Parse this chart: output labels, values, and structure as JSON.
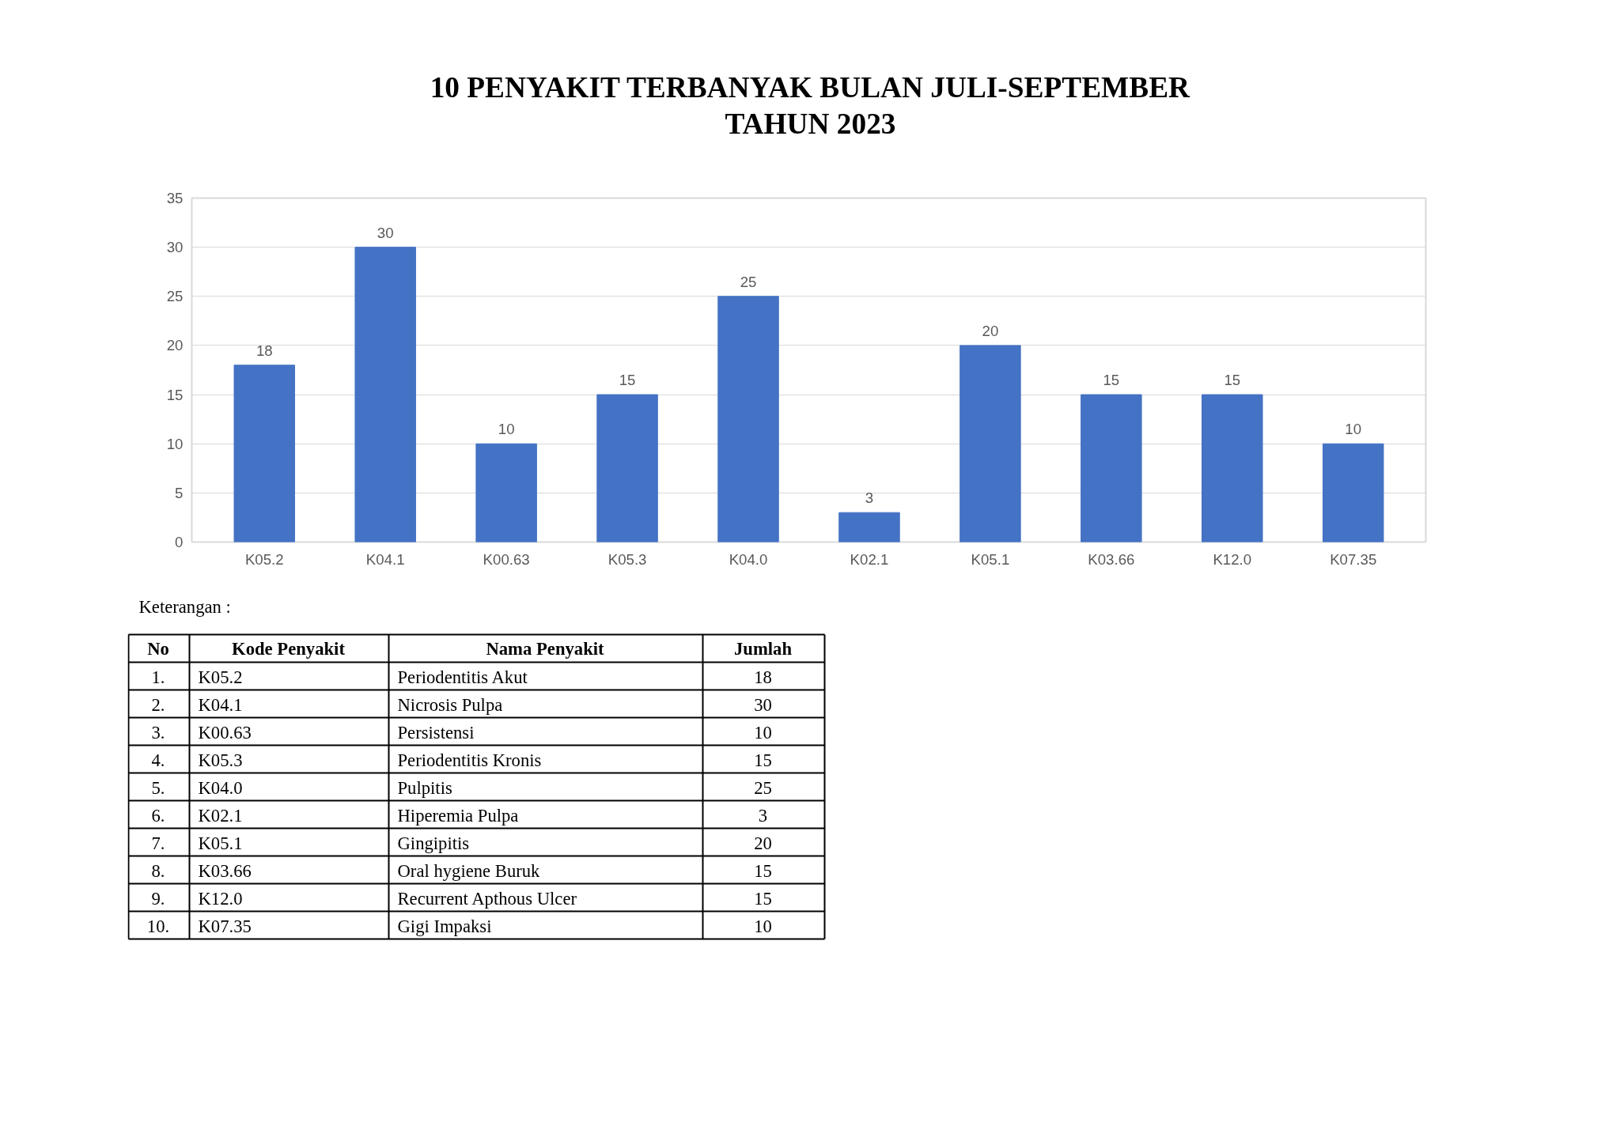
{
  "chart_data": {
    "type": "bar",
    "title": "10 PENYAKIT TERBANYAK BULAN JULI-SEPTEMBER TAHUN 2023",
    "categories": [
      "K05.2",
      "K04.1",
      "K00.63",
      "K05.3",
      "K04.0",
      "K02.1",
      "K05.1",
      "K03.66",
      "K12.0",
      "K07.35"
    ],
    "values": [
      18,
      30,
      10,
      15,
      25,
      3,
      20,
      15,
      15,
      10
    ],
    "color": "#4472c4",
    "ylim": [
      0,
      35
    ],
    "yticks": [
      0,
      5,
      10,
      15,
      20,
      25,
      30,
      35
    ],
    "grid": "y",
    "data_labels": true,
    "annotations": [
      "Keterangan :",
      "No",
      "Kode Penyakit",
      "Nama Penyakit",
      "Jumlah",
      "1.",
      "2.",
      "3.",
      "4.",
      "5.",
      "6.",
      "7.",
      "8.",
      "9.",
      "10.",
      "Periodentitis Akut",
      "Nicrosis Pulpa",
      "Persistensi",
      "Periodentitis Kronis",
      "Pulpitis",
      "Hiperemia Pulpa",
      "Gingipitis",
      "Oral hygiene Buruk",
      "Recurrent Apthous Ulcer",
      "Gigi Impaksi",
      "18",
      "30",
      "10",
      "15",
      "25",
      "3",
      "20",
      "15",
      "15",
      "10"
    ]
  }
}
